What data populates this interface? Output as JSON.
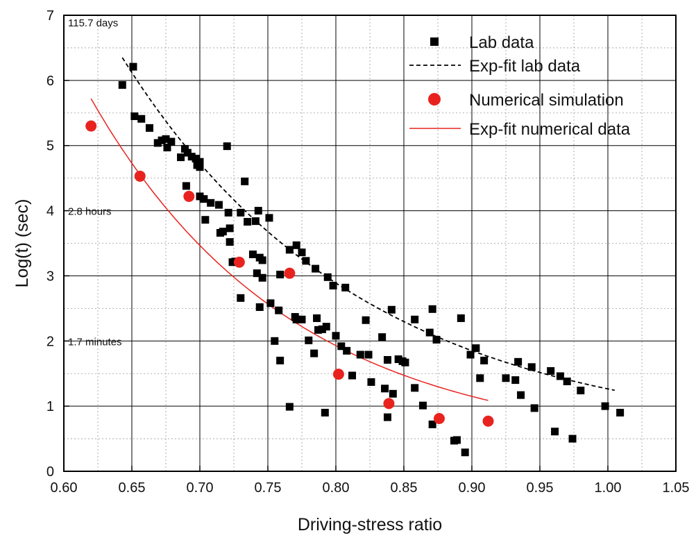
{
  "chart_data": {
    "type": "scatter",
    "title": "",
    "xlabel": "Driving-stress ratio",
    "ylabel": "Log(t) (sec)",
    "xlim": [
      0.6,
      1.05
    ],
    "ylim": [
      0,
      7
    ],
    "xticks": [
      "0.60",
      "0.65",
      "0.70",
      "0.75",
      "0.80",
      "0.85",
      "0.90",
      "0.95",
      "1.00",
      "1.05"
    ],
    "yticks": [
      "0",
      "1",
      "2",
      "3",
      "4",
      "5",
      "6",
      "7"
    ],
    "grid": {
      "major": true,
      "minor_dotted": true
    },
    "legend_position": "top-right",
    "annotations": [
      {
        "text": "115.7 days",
        "y": 7
      },
      {
        "text": "2.8 hours",
        "y": 4
      },
      {
        "text": "1.7 minutes",
        "y": 2
      }
    ],
    "series": [
      {
        "name": "Lab data",
        "kind": "scatter",
        "marker": "square",
        "color": "#000000",
        "points": [
          [
            0.643,
            5.93
          ],
          [
            0.651,
            6.21
          ],
          [
            0.652,
            5.45
          ],
          [
            0.657,
            5.41
          ],
          [
            0.663,
            5.27
          ],
          [
            0.669,
            5.04
          ],
          [
            0.672,
            5.08
          ],
          [
            0.675,
            5.1
          ],
          [
            0.676,
            4.97
          ],
          [
            0.679,
            5.06
          ],
          [
            0.686,
            4.82
          ],
          [
            0.689,
            4.95
          ],
          [
            0.691,
            4.89
          ],
          [
            0.694,
            4.83
          ],
          [
            0.697,
            4.8
          ],
          [
            0.698,
            4.7
          ],
          [
            0.7,
            4.75
          ],
          [
            0.7,
            4.67
          ],
          [
            0.69,
            4.38
          ],
          [
            0.7,
            4.22
          ],
          [
            0.703,
            4.18
          ],
          [
            0.704,
            3.86
          ],
          [
            0.708,
            4.12
          ],
          [
            0.714,
            4.09
          ],
          [
            0.715,
            3.66
          ],
          [
            0.717,
            3.68
          ],
          [
            0.72,
            4.99
          ],
          [
            0.721,
            3.97
          ],
          [
            0.722,
            3.73
          ],
          [
            0.722,
            3.52
          ],
          [
            0.724,
            3.21
          ],
          [
            0.726,
            3.22
          ],
          [
            0.73,
            3.97
          ],
          [
            0.73,
            2.66
          ],
          [
            0.733,
            4.45
          ],
          [
            0.735,
            3.83
          ],
          [
            0.739,
            3.33
          ],
          [
            0.741,
            3.84
          ],
          [
            0.742,
            3.04
          ],
          [
            0.743,
            4.0
          ],
          [
            0.744,
            2.52
          ],
          [
            0.744,
            3.28
          ],
          [
            0.746,
            3.24
          ],
          [
            0.746,
            2.97
          ],
          [
            0.751,
            3.89
          ],
          [
            0.752,
            2.58
          ],
          [
            0.755,
            2.0
          ],
          [
            0.758,
            2.47
          ],
          [
            0.759,
            1.7
          ],
          [
            0.759,
            3.02
          ],
          [
            0.766,
            0.99
          ],
          [
            0.766,
            3.4
          ],
          [
            0.77,
            2.37
          ],
          [
            0.771,
            3.47
          ],
          [
            0.771,
            2.33
          ],
          [
            0.775,
            2.33
          ],
          [
            0.775,
            3.36
          ],
          [
            0.778,
            3.23
          ],
          [
            0.78,
            2.01
          ],
          [
            0.784,
            1.81
          ],
          [
            0.785,
            3.11
          ],
          [
            0.786,
            2.35
          ],
          [
            0.787,
            2.17
          ],
          [
            0.79,
            2.18
          ],
          [
            0.792,
            0.9
          ],
          [
            0.793,
            2.22
          ],
          [
            0.794,
            2.98
          ],
          [
            0.798,
            2.85
          ],
          [
            0.8,
            2.08
          ],
          [
            0.804,
            1.92
          ],
          [
            0.807,
            2.82
          ],
          [
            0.808,
            1.85
          ],
          [
            0.812,
            1.47
          ],
          [
            0.818,
            1.79
          ],
          [
            0.822,
            2.32
          ],
          [
            0.824,
            1.79
          ],
          [
            0.826,
            1.37
          ],
          [
            0.834,
            2.06
          ],
          [
            0.836,
            1.27
          ],
          [
            0.838,
            0.83
          ],
          [
            0.838,
            1.71
          ],
          [
            0.841,
            2.48
          ],
          [
            0.842,
            1.19
          ],
          [
            0.846,
            1.72
          ],
          [
            0.849,
            1.69
          ],
          [
            0.851,
            1.67
          ],
          [
            0.858,
            2.33
          ],
          [
            0.858,
            1.28
          ],
          [
            0.864,
            1.01
          ],
          [
            0.869,
            2.13
          ],
          [
            0.871,
            0.72
          ],
          [
            0.871,
            2.49
          ],
          [
            0.874,
            2.02
          ],
          [
            0.887,
            0.47
          ],
          [
            0.889,
            0.48
          ],
          [
            0.892,
            2.35
          ],
          [
            0.895,
            0.29
          ],
          [
            0.899,
            1.79
          ],
          [
            0.903,
            1.89
          ],
          [
            0.906,
            1.43
          ],
          [
            0.909,
            1.7
          ],
          [
            0.925,
            1.43
          ],
          [
            0.932,
            1.4
          ],
          [
            0.934,
            1.68
          ],
          [
            0.936,
            1.17
          ],
          [
            0.944,
            1.6
          ],
          [
            0.946,
            0.97
          ],
          [
            0.958,
            1.54
          ],
          [
            0.961,
            0.61
          ],
          [
            0.965,
            1.46
          ],
          [
            0.97,
            1.38
          ],
          [
            0.974,
            0.5
          ],
          [
            0.98,
            1.24
          ],
          [
            0.998,
            1.0
          ],
          [
            1.009,
            0.9
          ]
        ]
      },
      {
        "name": "Exp-fit lab data",
        "kind": "curve",
        "style": "dashed",
        "color": "#000000",
        "fit": {
          "a": 6.35,
          "b": 5.7,
          "c": 0.5,
          "x0": 0.643
        },
        "x_range": [
          0.643,
          1.005
        ]
      },
      {
        "name": "Numerical simulation",
        "kind": "scatter",
        "marker": "circle",
        "color": "#e8231f",
        "points": [
          [
            0.62,
            5.3
          ],
          [
            0.656,
            4.53
          ],
          [
            0.692,
            4.22
          ],
          [
            0.729,
            3.21
          ],
          [
            0.766,
            3.04
          ],
          [
            0.802,
            1.49
          ],
          [
            0.839,
            1.04
          ],
          [
            0.876,
            0.81
          ],
          [
            0.912,
            0.77
          ]
        ]
      },
      {
        "name": "Exp-fit numerical data",
        "kind": "curve",
        "style": "solid",
        "color": "#e8231f",
        "fit": {
          "a": 5.72,
          "b": 6.8,
          "c": 0.35,
          "x0": 0.62
        },
        "x_range": [
          0.62,
          0.912
        ]
      }
    ]
  }
}
